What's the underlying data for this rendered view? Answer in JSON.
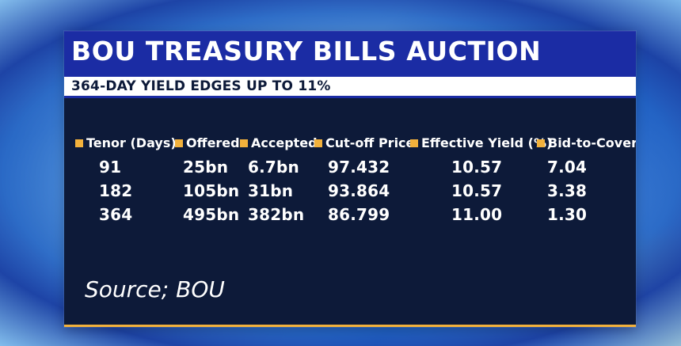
{
  "graphic": {
    "title": "BOU TREASURY BILLS AUCTION",
    "subtitle": "364-DAY YIELD EDGES UP TO 11%",
    "source": "Source; BOU",
    "colors": {
      "header": "#1b2ca4",
      "panel": "#0d1a39",
      "accent": "#f2b13c",
      "text": "#ffffff"
    }
  },
  "table": {
    "headers": [
      "Tenor (Days)",
      "Offered",
      "Accepted",
      "Cut-off Price",
      "Effective Yield (%)",
      "Bid-to-Cover"
    ],
    "rows": [
      [
        "91",
        "25bn",
        "6.7bn",
        "97.432",
        "10.57",
        "7.04"
      ],
      [
        "182",
        "105bn",
        "31bn",
        "93.864",
        "10.57",
        "3.38"
      ],
      [
        "364",
        "495bn",
        "382bn",
        "86.799",
        "11.00",
        "1.30"
      ]
    ]
  },
  "chart_data": {
    "type": "table",
    "title": "BOU TREASURY BILLS AUCTION",
    "subtitle": "364-DAY YIELD EDGES UP TO 11%",
    "columns": [
      "Tenor (Days)",
      "Offered",
      "Accepted",
      "Cut-off Price",
      "Effective Yield (%)",
      "Bid-to-Cover"
    ],
    "rows": [
      [
        "91",
        "25bn",
        "6.7bn",
        "97.432",
        "10.57",
        "7.04"
      ],
      [
        "182",
        "105bn",
        "31bn",
        "93.864",
        "10.57",
        "3.38"
      ],
      [
        "364",
        "495bn",
        "382bn",
        "86.799",
        "11.00",
        "1.30"
      ]
    ],
    "source": "Source; BOU"
  }
}
